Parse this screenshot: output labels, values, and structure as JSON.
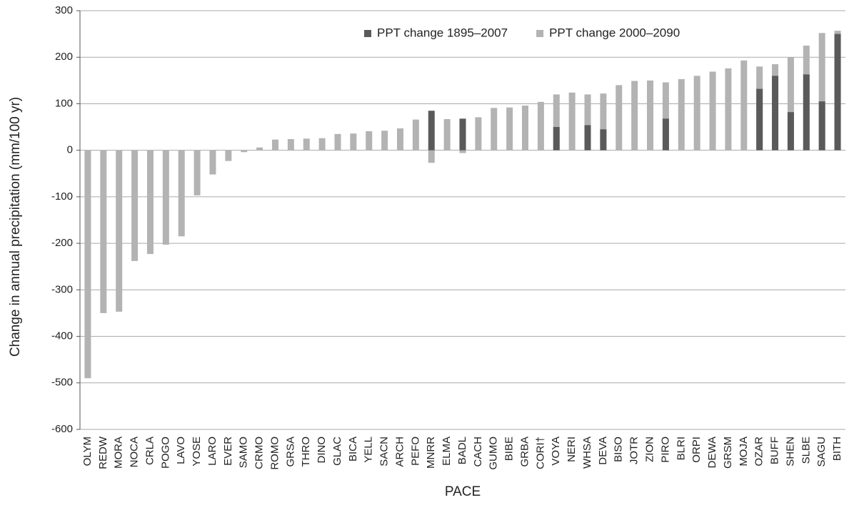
{
  "chart_data": {
    "type": "bar",
    "overlay": true,
    "y_label": "Change in annual precipitation (mm/100 yr)",
    "x_label": "PACE",
    "categories": [
      "OLYM",
      "REDW",
      "MORA",
      "NOCA",
      "CRLA",
      "POGO",
      "LAVO",
      "YOSE",
      "LARO",
      "EVER",
      "SAMO",
      "CRMO",
      "ROMO",
      "GRSA",
      "THRO",
      "DINO",
      "GLAC",
      "BICA",
      "YELL",
      "SACN",
      "ARCH",
      "PEFO",
      "MNRR",
      "ELMA",
      "BADL",
      "CACH",
      "GUMO",
      "BIBE",
      "GRBA",
      "CORI†",
      "VOYA",
      "NERI",
      "WHSA",
      "DEVA",
      "BISO",
      "JOTR",
      "ZION",
      "PIRO",
      "BLRI",
      "ORPI",
      "DEWA",
      "GRSM",
      "MOJA",
      "OZAR",
      "BUFF",
      "SHEN",
      "SLBE",
      "SAGU",
      "BITH"
    ],
    "series": [
      {
        "name": "PPT change 2000–2090",
        "color": "#b3b3b3",
        "values": [
          -490,
          -350,
          -347,
          -238,
          -223,
          -203,
          -185,
          -97,
          -52,
          -23,
          -4,
          6,
          23,
          24,
          25,
          26,
          35,
          36,
          41,
          42,
          47,
          66,
          -27,
          67,
          -6,
          71,
          91,
          92,
          96,
          104,
          120,
          124,
          120,
          122,
          140,
          149,
          150,
          146,
          153,
          160,
          169,
          176,
          193,
          180,
          185,
          200,
          225,
          252,
          257
        ]
      },
      {
        "name": "PPT change 1895–2007",
        "color": "#5a5a5a",
        "values": [
          null,
          null,
          null,
          null,
          null,
          null,
          null,
          null,
          null,
          null,
          null,
          null,
          null,
          null,
          null,
          null,
          null,
          null,
          null,
          null,
          null,
          null,
          85,
          null,
          68,
          null,
          null,
          null,
          null,
          null,
          50,
          null,
          54,
          45,
          null,
          null,
          null,
          68,
          null,
          null,
          null,
          null,
          null,
          132,
          160,
          82,
          163,
          105,
          250
        ]
      }
    ],
    "legend_order": [
      1,
      0
    ],
    "legend": "upper right",
    "ylim": [
      -600,
      300
    ],
    "yticks": [
      -600,
      -500,
      -400,
      -300,
      -200,
      -100,
      0,
      100,
      200,
      300
    ],
    "grid": true
  }
}
